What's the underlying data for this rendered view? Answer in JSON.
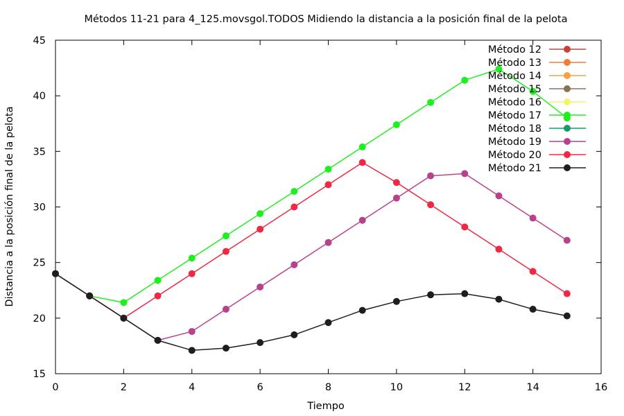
{
  "chart_data": {
    "type": "line",
    "title": "Métodos 11-21 para 4_125.movsgol.TODOS Midiendo la distancia a la posición final de la pelota",
    "xlabel": "Tiempo",
    "ylabel": "Distancia a la posición final de la pelota",
    "xlim": [
      0,
      16
    ],
    "ylim": [
      15,
      45
    ],
    "xticks": [
      0,
      2,
      4,
      6,
      8,
      10,
      12,
      14,
      16
    ],
    "yticks": [
      15,
      20,
      25,
      30,
      35,
      40,
      45
    ],
    "grid": false,
    "legend_position": "top-right",
    "series": [
      {
        "name": "Método 12",
        "color": "#c8413c",
        "x": [],
        "y": []
      },
      {
        "name": "Método 13",
        "color": "#f47a3a",
        "x": [],
        "y": []
      },
      {
        "name": "Método 14",
        "color": "#f7a23c",
        "x": [],
        "y": []
      },
      {
        "name": "Método 15",
        "color": "#857358",
        "x": [],
        "y": []
      },
      {
        "name": "Método 16",
        "color": "#f4f46a",
        "x": [],
        "y": []
      },
      {
        "name": "Método 17",
        "color": "#1ef01e",
        "x": [
          0,
          1,
          2,
          3,
          4,
          5,
          6,
          7,
          8,
          9,
          10,
          11,
          12,
          13,
          14,
          15
        ],
        "y": [
          24,
          22,
          21.4,
          23.4,
          25.4,
          27.4,
          29.4,
          31.4,
          33.4,
          35.4,
          37.4,
          39.4,
          41.4,
          42.4,
          40.4,
          38
        ]
      },
      {
        "name": "Método 18",
        "color": "#149c6c",
        "x": [],
        "y": []
      },
      {
        "name": "Método 19",
        "color": "#b8418c",
        "x": [
          0,
          1,
          2,
          3,
          4,
          5,
          6,
          7,
          8,
          9,
          10,
          11,
          12,
          13,
          14,
          15
        ],
        "y": [
          24,
          22,
          20,
          18,
          18.8,
          20.8,
          22.8,
          24.8,
          26.8,
          28.8,
          30.8,
          32.8,
          33,
          31,
          29,
          27
        ]
      },
      {
        "name": "Método 20",
        "color": "#ef2844",
        "x": [
          0,
          1,
          2,
          3,
          4,
          5,
          6,
          7,
          8,
          9,
          10,
          11,
          12,
          13,
          14,
          15
        ],
        "y": [
          24,
          22,
          20,
          22,
          24,
          26,
          28,
          30,
          32,
          34,
          32.2,
          30.2,
          28.2,
          26.2,
          24.2,
          22.2
        ]
      },
      {
        "name": "Método 21",
        "color": "#1e1e1e",
        "x": [
          0,
          1,
          2,
          3,
          4,
          5,
          6,
          7,
          8,
          9,
          10,
          11,
          12,
          13,
          14,
          15
        ],
        "y": [
          24,
          22,
          20,
          18,
          17.1,
          17.3,
          17.8,
          18.5,
          19.6,
          20.7,
          21.5,
          22.1,
          22.2,
          21.7,
          20.8,
          20.2
        ]
      }
    ]
  }
}
